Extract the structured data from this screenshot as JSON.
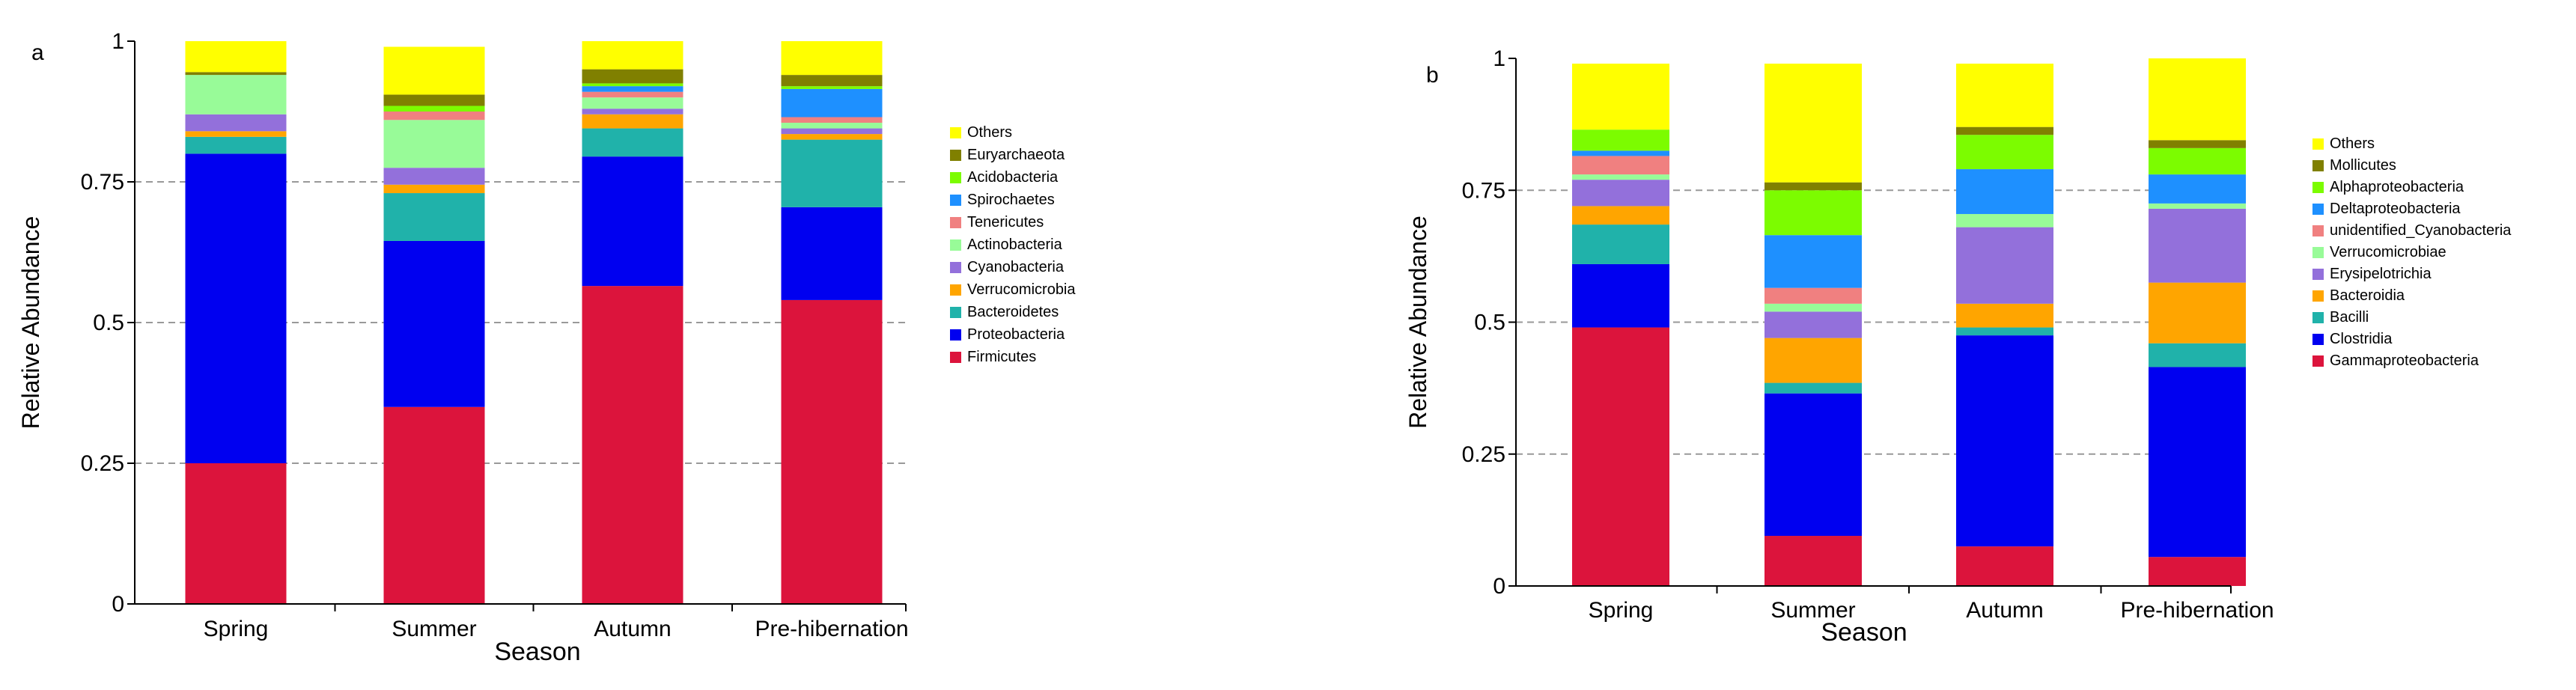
{
  "chart_data": [
    {
      "panel_label": "a",
      "type": "bar",
      "stacked": true,
      "categories": [
        "Spring",
        "Summer",
        "Autumn",
        "Pre-hibernation"
      ],
      "xlabel": "Season",
      "ylabel": "Relative Abundance",
      "ylim": [
        0,
        1
      ],
      "yticks": [
        {
          "value": 0,
          "label": "0"
        },
        {
          "value": 0.25,
          "label": "0.25"
        },
        {
          "value": 0.5,
          "label": "0.5"
        },
        {
          "value": 0.75,
          "label": "0.75"
        },
        {
          "value": 1,
          "label": "1"
        }
      ],
      "grid": "dashed horizontal at 0.25, 0.5, 0.75",
      "legend_position": "right",
      "series": [
        {
          "name": "Firmicutes",
          "color": "#DC143C",
          "values": [
            0.25,
            0.35,
            0.565,
            0.54
          ]
        },
        {
          "name": "Proteobacteria",
          "color": "#0000F0",
          "values": [
            0.55,
            0.295,
            0.23,
            0.165
          ]
        },
        {
          "name": "Bacteroidetes",
          "color": "#20B2AA",
          "values": [
            0.03,
            0.085,
            0.05,
            0.12
          ]
        },
        {
          "name": "Verrucomicrobia",
          "color": "#FFA500",
          "values": [
            0.01,
            0.015,
            0.025,
            0.01
          ]
        },
        {
          "name": "Cyanobacteria",
          "color": "#9370DB",
          "values": [
            0.03,
            0.03,
            0.01,
            0.01
          ]
        },
        {
          "name": "Actinobacteria",
          "color": "#98FB98",
          "values": [
            0.07,
            0.085,
            0.02,
            0.01
          ]
        },
        {
          "name": "Tenericutes",
          "color": "#F08080",
          "values": [
            0.0,
            0.015,
            0.01,
            0.01
          ]
        },
        {
          "name": "Spirochaetes",
          "color": "#1E90FF",
          "values": [
            0.0,
            0.0,
            0.01,
            0.05
          ]
        },
        {
          "name": "Acidobacteria",
          "color": "#7CFC00",
          "values": [
            0.0,
            0.01,
            0.005,
            0.005
          ]
        },
        {
          "name": "Euryarchaeota",
          "color": "#808000",
          "values": [
            0.005,
            0.02,
            0.025,
            0.02
          ]
        },
        {
          "name": "Others",
          "color": "#FFFF00",
          "values": [
            0.055,
            0.085,
            0.05,
            0.06
          ]
        }
      ]
    },
    {
      "panel_label": "b",
      "type": "bar",
      "stacked": true,
      "categories": [
        "Spring",
        "Summer",
        "Autumn",
        "Pre-hibernation"
      ],
      "xlabel": "Season",
      "ylabel": "Relative Abundance",
      "ylim": [
        0,
        1
      ],
      "yticks": [
        {
          "value": 0,
          "label": "0"
        },
        {
          "value": 0.25,
          "label": "0.25"
        },
        {
          "value": 0.5,
          "label": "0.5"
        },
        {
          "value": 0.75,
          "label": "0.75"
        },
        {
          "value": 1,
          "label": "1"
        }
      ],
      "grid": "dashed horizontal at 0.25, 0.5, 0.75",
      "legend_position": "right",
      "series": [
        {
          "name": "Gammaproteobacteria",
          "color": "#DC143C",
          "values": [
            0.49,
            0.095,
            0.075,
            0.055
          ]
        },
        {
          "name": "Clostridia",
          "color": "#0000F0",
          "values": [
            0.12,
            0.27,
            0.4,
            0.36
          ]
        },
        {
          "name": "Bacilli",
          "color": "#20B2AA",
          "values": [
            0.075,
            0.02,
            0.015,
            0.045
          ]
        },
        {
          "name": "Bacteroidia",
          "color": "#FFA500",
          "values": [
            0.035,
            0.085,
            0.045,
            0.115
          ]
        },
        {
          "name": "Erysipelotrichia",
          "color": "#9370DB",
          "values": [
            0.05,
            0.05,
            0.145,
            0.14
          ]
        },
        {
          "name": "Verrucomicrobiae",
          "color": "#98FB98",
          "values": [
            0.01,
            0.015,
            0.025,
            0.01
          ]
        },
        {
          "name": "unidentified_Cyanobacteria",
          "color": "#F08080",
          "values": [
            0.035,
            0.03,
            0.0,
            0.0
          ]
        },
        {
          "name": "Deltaproteobacteria",
          "color": "#1E90FF",
          "values": [
            0.01,
            0.1,
            0.085,
            0.055
          ]
        },
        {
          "name": "Alphaproteobacteria",
          "color": "#7CFC00",
          "values": [
            0.04,
            0.085,
            0.065,
            0.05
          ]
        },
        {
          "name": "Mollicutes",
          "color": "#808000",
          "values": [
            0.0,
            0.015,
            0.015,
            0.015
          ]
        },
        {
          "name": "Others",
          "color": "#FFFF00",
          "values": [
            0.125,
            0.225,
            0.12,
            0.155
          ]
        }
      ]
    }
  ]
}
